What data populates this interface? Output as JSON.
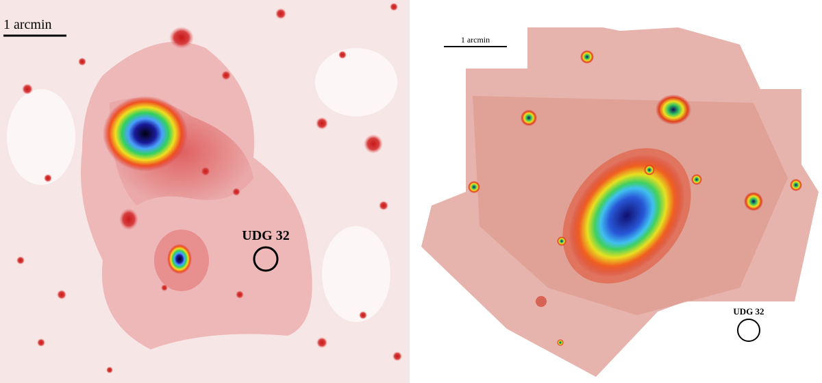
{
  "panels": [
    {
      "scale_label": "1 arcmin",
      "target_label": "UDG 32"
    },
    {
      "scale_label": "1 arcmin",
      "target_label": "UDG 32"
    }
  ]
}
